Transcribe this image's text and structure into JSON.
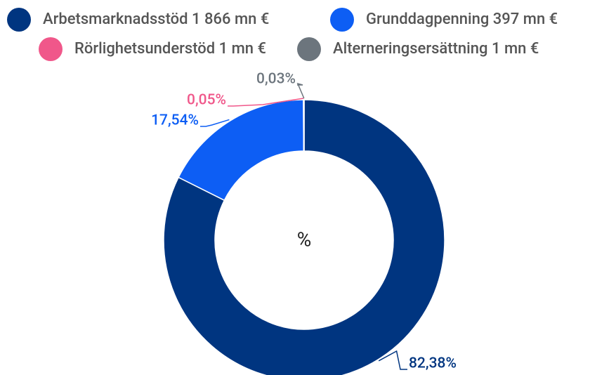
{
  "chart_data": {
    "type": "donut",
    "center_label": "%",
    "categories": [
      "Arbetsmarknadsstöd 1 866 mn €",
      "Grunddagpenning 397 mn €",
      "Rörlighetsunderstöd 1 mn €",
      "Alterneringsersättning 1 mn €"
    ],
    "values": [
      82.38,
      17.54,
      0.05,
      0.03
    ],
    "value_labels": [
      "82,38%",
      "17,54%",
      "0,05%",
      "0,03%"
    ],
    "colors": [
      "#003580",
      "#0d5ef4",
      "#f0578a",
      "#6c757d"
    ],
    "legend": "top"
  }
}
